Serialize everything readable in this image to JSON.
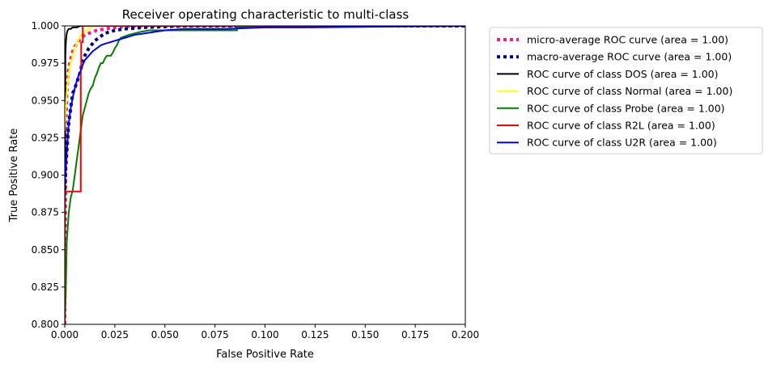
{
  "chart_data": {
    "type": "line",
    "title": "Receiver operating characteristic to multi-class",
    "xlabel": "False Positive Rate",
    "ylabel": "True Positive Rate",
    "xlim": [
      0.0,
      0.2
    ],
    "ylim": [
      0.8,
      1.0
    ],
    "xticks": [
      "0.000",
      "0.025",
      "0.050",
      "0.075",
      "0.100",
      "0.125",
      "0.150",
      "0.175",
      "0.200"
    ],
    "yticks": [
      "0.800",
      "0.825",
      "0.850",
      "0.875",
      "0.900",
      "0.925",
      "0.950",
      "0.975",
      "1.000"
    ],
    "grid": false,
    "legend_placement": "outside upper right",
    "series": [
      {
        "name": "micro-average ROC curve (area = 1.00)",
        "color": "#ff1493",
        "style": "dotted",
        "x": [
          0.0,
          0.0005,
          0.001,
          0.0015,
          0.002,
          0.003,
          0.004,
          0.005,
          0.007,
          0.009,
          0.012,
          0.016,
          0.02,
          0.025,
          0.03,
          0.04,
          0.2
        ],
        "y": [
          0.8,
          0.93,
          0.955,
          0.965,
          0.972,
          0.978,
          0.983,
          0.986,
          0.99,
          0.993,
          0.995,
          0.997,
          0.998,
          0.999,
          0.9995,
          1.0,
          1.0
        ]
      },
      {
        "name": "macro-average ROC curve (area = 1.00)",
        "color": "#000080",
        "style": "dotted",
        "x": [
          0.0,
          0.0005,
          0.001,
          0.002,
          0.003,
          0.004,
          0.005,
          0.006,
          0.007,
          0.008,
          0.0085,
          0.01,
          0.012,
          0.015,
          0.02,
          0.025,
          0.03,
          0.04,
          0.06,
          0.2
        ],
        "y": [
          0.89,
          0.905,
          0.915,
          0.935,
          0.945,
          0.955,
          0.958,
          0.962,
          0.966,
          0.97,
          0.975,
          0.98,
          0.985,
          0.99,
          0.995,
          0.997,
          0.998,
          0.999,
          1.0,
          1.0
        ]
      },
      {
        "name": "ROC curve of class DOS (area = 1.00)",
        "color": "#000000",
        "style": "solid",
        "x": [
          0.0,
          0.0003,
          0.0006,
          0.001,
          0.0015,
          0.002,
          0.003,
          0.004,
          0.006,
          0.008,
          0.012,
          0.2
        ],
        "y": [
          0.8,
          0.98,
          0.99,
          0.995,
          0.997,
          0.998,
          0.998,
          0.999,
          0.999,
          1.0,
          1.0,
          1.0
        ]
      },
      {
        "name": "ROC curve of class Normal (area = 1.00)",
        "color": "#ffff00",
        "style": "solid",
        "x": [
          0.0,
          0.0005,
          0.001,
          0.0015,
          0.002,
          0.0025,
          0.003,
          0.004,
          0.005,
          0.006,
          0.007,
          0.008,
          0.01,
          0.012,
          0.015,
          0.2
        ],
        "y": [
          0.93,
          0.945,
          0.955,
          0.962,
          0.968,
          0.972,
          0.975,
          0.98,
          0.985,
          0.988,
          0.991,
          0.994,
          0.996,
          0.998,
          1.0,
          1.0
        ]
      },
      {
        "name": "ROC curve of class Probe (area = 1.00)",
        "color": "#008000",
        "style": "solid",
        "x": [
          0.0,
          0.0005,
          0.001,
          0.002,
          0.003,
          0.004,
          0.005,
          0.006,
          0.007,
          0.008,
          0.009,
          0.01,
          0.011,
          0.012,
          0.013,
          0.014,
          0.015,
          0.016,
          0.017,
          0.018,
          0.019,
          0.02,
          0.021,
          0.022,
          0.023,
          0.024,
          0.025,
          0.026,
          0.027,
          0.028,
          0.03,
          0.032,
          0.035,
          0.038,
          0.042,
          0.046,
          0.05,
          0.06,
          0.07,
          0.08,
          0.086,
          0.086,
          0.2
        ],
        "y": [
          0.8,
          0.82,
          0.855,
          0.875,
          0.885,
          0.89,
          0.9,
          0.91,
          0.92,
          0.93,
          0.94,
          0.945,
          0.95,
          0.955,
          0.958,
          0.96,
          0.965,
          0.968,
          0.972,
          0.975,
          0.975,
          0.978,
          0.98,
          0.98,
          0.98,
          0.982,
          0.985,
          0.987,
          0.99,
          0.992,
          0.993,
          0.994,
          0.995,
          0.996,
          0.997,
          0.997,
          0.997,
          0.997,
          0.997,
          0.997,
          0.997,
          0.999,
          1.0
        ]
      },
      {
        "name": "ROC curve of class R2L (area = 1.00)",
        "color": "#ff0000",
        "style": "solid",
        "x": [
          0.0,
          0.0,
          0.008,
          0.008,
          0.0082,
          0.0082,
          0.009,
          0.009,
          0.2
        ],
        "y": [
          0.8,
          0.889,
          0.889,
          0.972,
          0.972,
          0.989,
          0.989,
          1.0,
          1.0
        ]
      },
      {
        "name": "ROC curve of class U2R (area = 1.00)",
        "color": "#0000ff",
        "style": "solid",
        "x": [
          0.0,
          0.0005,
          0.001,
          0.0015,
          0.002,
          0.003,
          0.004,
          0.005,
          0.006,
          0.007,
          0.008,
          0.009,
          0.01,
          0.012,
          0.014,
          0.016,
          0.018,
          0.02,
          0.025,
          0.03,
          0.035,
          0.04,
          0.05,
          0.06,
          0.08,
          0.1,
          0.12,
          0.2
        ],
        "y": [
          0.895,
          0.905,
          0.915,
          0.925,
          0.935,
          0.945,
          0.952,
          0.958,
          0.963,
          0.967,
          0.97,
          0.974,
          0.977,
          0.98,
          0.983,
          0.985,
          0.987,
          0.988,
          0.99,
          0.992,
          0.994,
          0.995,
          0.997,
          0.998,
          0.998,
          0.999,
          0.999,
          1.0
        ]
      }
    ]
  }
}
